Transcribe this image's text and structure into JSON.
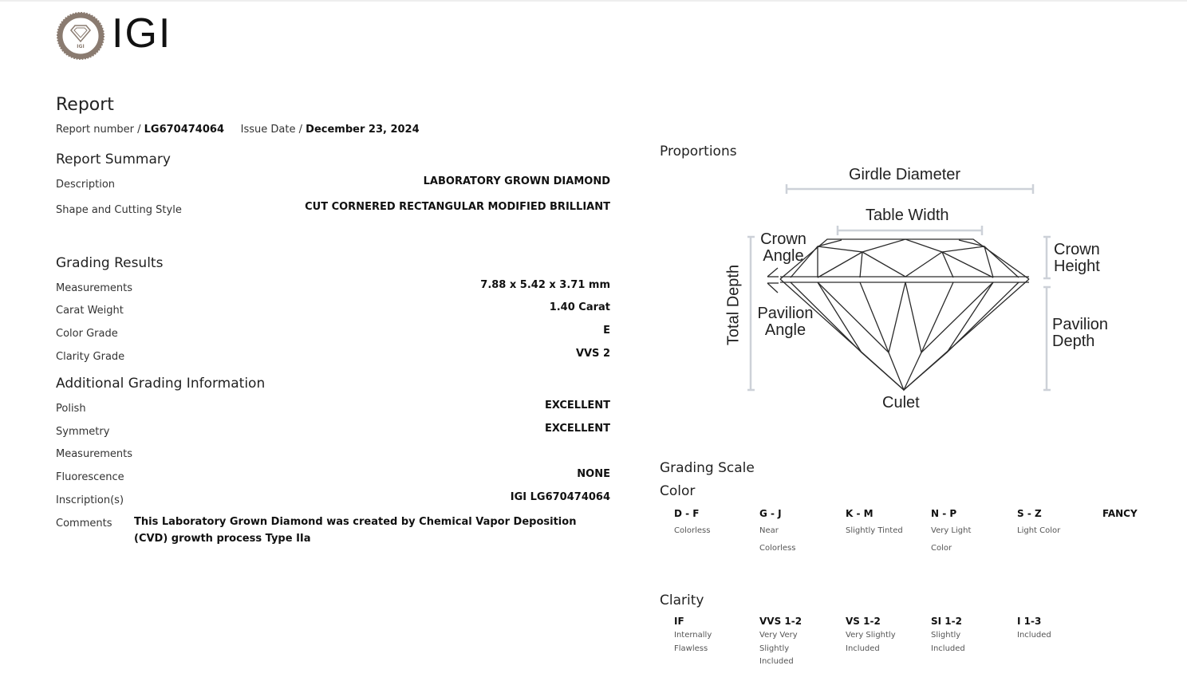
{
  "brand": {
    "name": "IGI",
    "seal_text": "INTERNATIONAL GEMOLOGICAL INSTITUTE 1975",
    "accent": "#8a7b70"
  },
  "header": {
    "title": "Report",
    "report_number_label": "Report number /",
    "report_number": "LG670474064",
    "issue_date_label": "Issue Date /",
    "issue_date": "December 23, 2024"
  },
  "summary": {
    "heading": "Report Summary",
    "rows": [
      {
        "label": "Description",
        "value": "LABORATORY GROWN DIAMOND"
      },
      {
        "label": "Shape and Cutting Style",
        "value": "CUT CORNERED RECTANGULAR MODIFIED BRILLIANT"
      }
    ]
  },
  "grading": {
    "heading": "Grading Results",
    "rows": [
      {
        "label": "Measurements",
        "value": "7.88 x 5.42 x 3.71 mm"
      },
      {
        "label": "Carat Weight",
        "value": "1.40 Carat"
      },
      {
        "label": "Color Grade",
        "value": "E"
      },
      {
        "label": "Clarity Grade",
        "value": "VVS 2"
      }
    ]
  },
  "additional": {
    "heading": "Additional Grading Information",
    "rows": [
      {
        "label": "Polish",
        "value": "EXCELLENT"
      },
      {
        "label": "Symmetry",
        "value": "EXCELLENT"
      },
      {
        "label": "Measurements",
        "value": ""
      },
      {
        "label": "Fluorescence",
        "value": "NONE"
      },
      {
        "label": "Inscription(s)",
        "value": "IGI LG670474064"
      },
      {
        "label": "Comments",
        "value": "This Laboratory Grown Diamond was created by Chemical Vapor Deposition (CVD) growth process Type IIa"
      }
    ]
  },
  "proportions": {
    "heading": "Proportions",
    "girdle_diameter": "Girdle Diameter",
    "table_width": "Table Width",
    "crown_angle": "Crown Angle",
    "pavilion_angle": "Pavilion Angle",
    "total_depth": "Total Depth",
    "crown_height": "Crown Height",
    "pavilion_depth": "Pavilion Depth",
    "culet": "Culet"
  },
  "grading_scale": {
    "heading": "Grading Scale",
    "color": {
      "heading": "Color",
      "items": [
        {
          "grade": "D - F",
          "desc": "Colorless"
        },
        {
          "grade": "G - J",
          "desc": "Near Colorless"
        },
        {
          "grade": "K - M",
          "desc": "Slightly Tinted"
        },
        {
          "grade": "N - P",
          "desc": "Very Light Color"
        },
        {
          "grade": "S - Z",
          "desc": "Light Color"
        },
        {
          "grade": "FANCY",
          "desc": ""
        }
      ]
    },
    "clarity": {
      "heading": "Clarity",
      "items": [
        {
          "grade": "IF",
          "desc": "Internally Flawless"
        },
        {
          "grade": "VVS 1-2",
          "desc": "Very Very Slightly Included"
        },
        {
          "grade": "VS 1-2",
          "desc": "Very Slightly Included"
        },
        {
          "grade": "SI 1-2",
          "desc": "Slightly Included"
        },
        {
          "grade": "I 1-3",
          "desc": "Included"
        }
      ]
    }
  }
}
